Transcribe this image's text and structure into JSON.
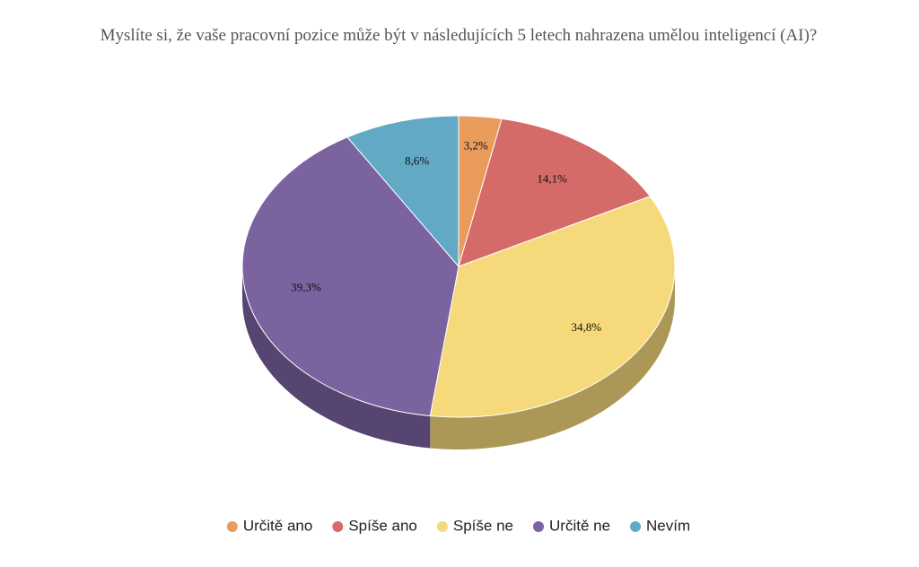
{
  "chart_data": {
    "type": "pie3d",
    "title": "Myslíte si, že vaše pracovní pozice může být v následujících 5 letech nahrazena umělou inteligencí (AI)?",
    "categories": [
      "Určitě ano",
      "Spíše ano",
      "Spíše ne",
      "Určitě ne",
      "Nevím"
    ],
    "values": [
      3.2,
      14.1,
      34.8,
      39.3,
      8.6
    ],
    "value_labels": [
      "3,2%",
      "14,1%",
      "34,8%",
      "39,3%",
      "8,6%"
    ],
    "colors": [
      "#e99c5b",
      "#d46b69",
      "#f6d97b",
      "#7b63a0",
      "#62a9c5"
    ],
    "legend": "bottom"
  }
}
